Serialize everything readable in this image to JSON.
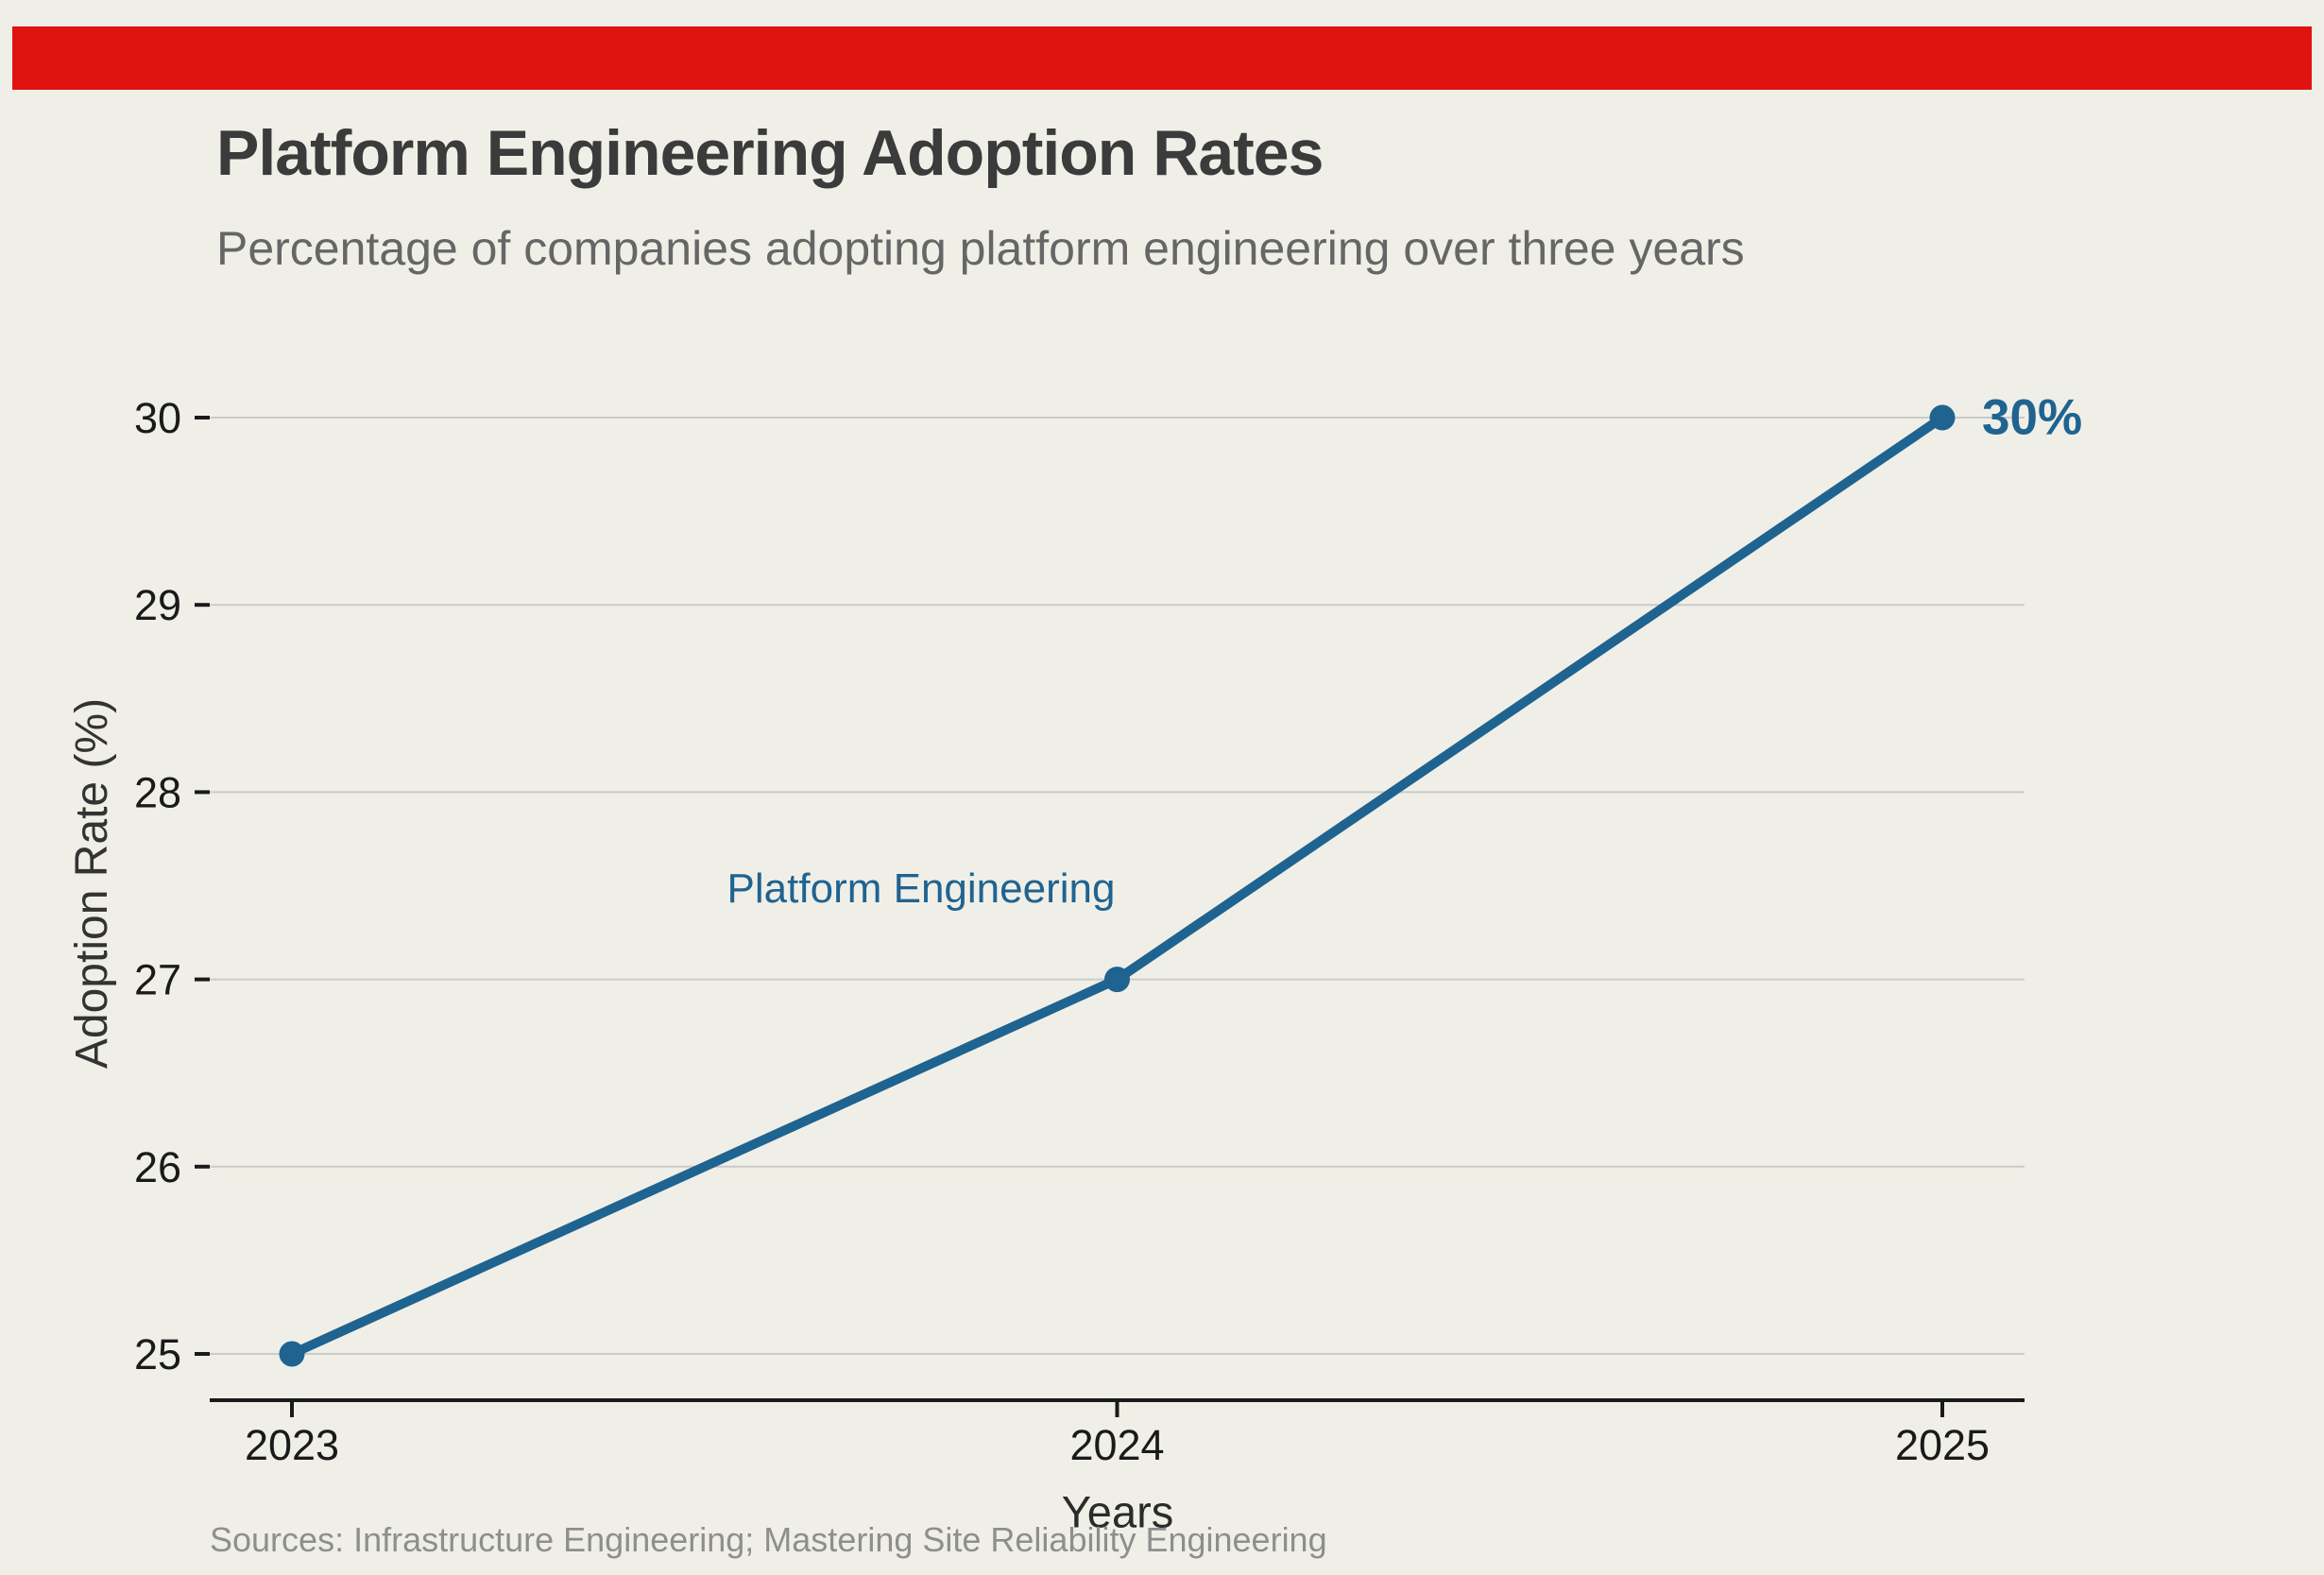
{
  "header": {
    "title": "Platform Engineering Adoption Rates",
    "subtitle": "Percentage of companies adopting platform engineering over three years"
  },
  "footer": {
    "sources": "Sources: Infrastructure Engineering; Mastering Site Reliability Engineering"
  },
  "chart_data": {
    "type": "line",
    "title": "Platform Engineering Adoption Rates",
    "subtitle": "Percentage of companies adopting platform engineering over three years",
    "xlabel": "Years",
    "ylabel": "Adoption Rate (%)",
    "categories": [
      "2023",
      "2024",
      "2025"
    ],
    "series": [
      {
        "name": "Platform Engineering",
        "values": [
          25,
          27,
          30
        ]
      }
    ],
    "ylim": [
      25,
      30
    ],
    "yticks": [
      25,
      26,
      27,
      28,
      29,
      30
    ],
    "grid": "horizontal-only",
    "legend": "inline-series-label",
    "series_label": {
      "text": "Platform Engineering"
    },
    "annotation": {
      "text": "30%",
      "at_x": "2025",
      "value": 30
    }
  },
  "colors": {
    "background": "#F0EFE7",
    "banner_red": "#E01310",
    "line_blue": "#1F6391",
    "grid_gray": "#CACACA",
    "axis_black": "#1A1A1A",
    "tick_black": "#1A1A1A",
    "title_gray": "#3B3B3B",
    "subtitle_gray": "#666666",
    "source_gray": "#8E8E8E"
  }
}
